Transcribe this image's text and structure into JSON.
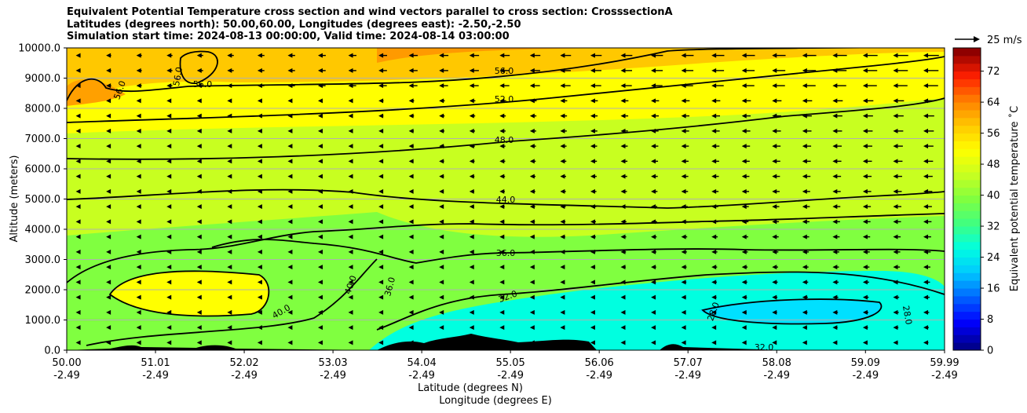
{
  "title_lines": [
    "Equivalent Potential Temperature cross section and wind vectors parallel to cross section: CrosssectionA",
    "Latitudes (degrees north): 50.00,60.00, Longitudes (degrees east): -2.50,-2.50",
    "Simulation start time: 2024-08-13 00:00:00, Valid time: 2024-08-14 03:00:00"
  ],
  "quiver_key": "25 m/s",
  "colors": {
    "colormap": [
      "#00008f",
      "#0000ff",
      "#0064ff",
      "#00c8ff",
      "#00ffe0",
      "#40ff80",
      "#80ff40",
      "#c8ff20",
      "#ffff00",
      "#ffc800",
      "#ff8000",
      "#ff2000",
      "#8f0000"
    ],
    "terrain": "#000000",
    "grid": "#b0b0b0"
  },
  "chart_data": {
    "type": "heatmap",
    "title": "Equivalent Potential Temperature cross section and wind vectors parallel to cross section: CrosssectionA",
    "xlabel": "Latitude (degrees N)",
    "xlabel2": "Longitude (degrees E)",
    "ylabel": "Altitude (meters)",
    "colorbar_label": "Equivalent potential temperature ˚C",
    "xlim": [
      50.0,
      59.99
    ],
    "ylim": [
      0,
      10000
    ],
    "x_ticks": [
      {
        "lat": "50.00",
        "lon": "-2.49"
      },
      {
        "lat": "51.01",
        "lon": "-2.49"
      },
      {
        "lat": "52.02",
        "lon": "-2.49"
      },
      {
        "lat": "53.03",
        "lon": "-2.49"
      },
      {
        "lat": "54.04",
        "lon": "-2.49"
      },
      {
        "lat": "55.05",
        "lon": "-2.49"
      },
      {
        "lat": "56.06",
        "lon": "-2.49"
      },
      {
        "lat": "57.07",
        "lon": "-2.49"
      },
      {
        "lat": "58.08",
        "lon": "-2.49"
      },
      {
        "lat": "59.09",
        "lon": "-2.49"
      },
      {
        "lat": "59.99",
        "lon": "-2.49"
      }
    ],
    "y_ticks": [
      "0.0",
      "1000.0",
      "2000.0",
      "3000.0",
      "4000.0",
      "5000.0",
      "6000.0",
      "7000.0",
      "8000.0",
      "9000.0",
      "10000.0"
    ],
    "colorbar_ticks": [
      "0",
      "8",
      "16",
      "24",
      "32",
      "40",
      "48",
      "56",
      "64",
      "72"
    ],
    "colorbar_range": [
      0,
      78
    ],
    "contour_labels": [
      "28.0",
      "32.0",
      "36.0",
      "40.0",
      "44.0",
      "48.0",
      "52.0",
      "56.0"
    ],
    "grid": true,
    "theta_e_profile": [
      {
        "alt": 0,
        "value": 38
      },
      {
        "alt": 1000,
        "value": 37
      },
      {
        "alt": 2000,
        "value": 37
      },
      {
        "alt": 3000,
        "value": 38
      },
      {
        "alt": 4000,
        "value": 41
      },
      {
        "alt": 5000,
        "value": 44
      },
      {
        "alt": 6000,
        "value": 47
      },
      {
        "alt": 7000,
        "value": 49
      },
      {
        "alt": 8000,
        "value": 51
      },
      {
        "alt": 9000,
        "value": 54
      },
      {
        "alt": 10000,
        "value": 56
      }
    ]
  }
}
